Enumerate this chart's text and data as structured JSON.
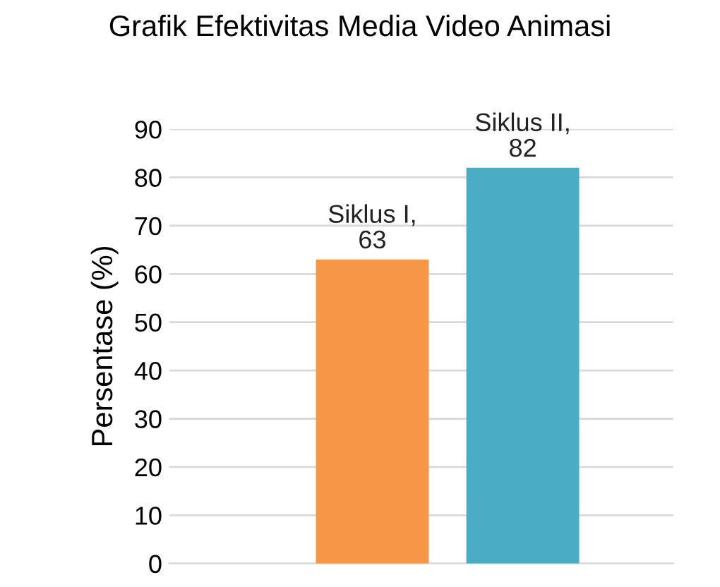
{
  "chart_data": {
    "type": "bar",
    "title": "Grafik Efektivitas Media Video Animasi",
    "ylabel": "Persentase (%)",
    "categories": [
      null,
      null
    ],
    "values": [
      63,
      82
    ],
    "colors": [
      "#f79646",
      "#4bacc6"
    ],
    "value_labels": [
      "Siklus I,\n63",
      "Siklus II,\n82"
    ],
    "ylim": [
      0,
      90
    ],
    "yticks": [
      0,
      10,
      20,
      30,
      40,
      50,
      60,
      70,
      80,
      90
    ],
    "grid": "y",
    "tick_labels": "y",
    "legend": false
  }
}
